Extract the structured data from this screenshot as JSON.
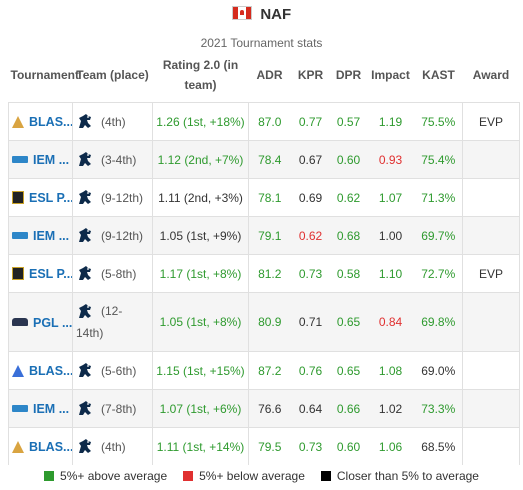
{
  "header": {
    "player_name": "NAF",
    "flag_icon": "canada-flag-icon"
  },
  "subtitle": "2021 Tournament stats",
  "columns": {
    "tournament": "Tournament",
    "team": "Team (place)",
    "rating": "Rating 2.0 (in team)",
    "adr": "ADR",
    "kpr": "KPR",
    "dpr": "DPR",
    "impact": "Impact",
    "kast": "KAST",
    "award": "Award"
  },
  "colors": {
    "good": "#2e9a2e",
    "bad": "#e03030",
    "neutral": "#000000"
  },
  "rows": [
    {
      "icon": "blast-gold-icon",
      "tournament": "BLAS...",
      "team_icon": "liquid-horse-icon",
      "place": "(4th)",
      "rating": "1.26 (1st, +18%)",
      "rating_class": "good",
      "adr": "87.0",
      "adr_class": "good",
      "kpr": "0.77",
      "kpr_class": "good",
      "dpr": "0.57",
      "dpr_class": "good",
      "impact": "1.19",
      "impact_class": "good",
      "kast": "75.5%",
      "kast_class": "good",
      "award": "EVP"
    },
    {
      "icon": "iem-icon",
      "tournament": "IEM ...",
      "team_icon": "liquid-horse-icon",
      "place": "(3-4th)",
      "rating": "1.12 (2nd, +7%)",
      "rating_class": "good",
      "adr": "78.4",
      "adr_class": "good",
      "kpr": "0.67",
      "kpr_class": "neutral",
      "dpr": "0.60",
      "dpr_class": "good",
      "impact": "0.93",
      "impact_class": "bad",
      "kast": "75.4%",
      "kast_class": "good",
      "award": ""
    },
    {
      "icon": "esl-pro-icon",
      "tournament": "ESL P...",
      "team_icon": "liquid-horse-icon",
      "place": "(9-12th)",
      "rating": "1.11 (2nd, +3%)",
      "rating_class": "neutral",
      "adr": "78.1",
      "adr_class": "good",
      "kpr": "0.69",
      "kpr_class": "neutral",
      "dpr": "0.62",
      "dpr_class": "good",
      "impact": "1.07",
      "impact_class": "good",
      "kast": "71.3%",
      "kast_class": "good",
      "award": ""
    },
    {
      "icon": "iem-icon",
      "tournament": "IEM ...",
      "team_icon": "liquid-horse-icon",
      "place": "(9-12th)",
      "rating": "1.05 (1st, +9%)",
      "rating_class": "neutral",
      "adr": "79.1",
      "adr_class": "good",
      "kpr": "0.62",
      "kpr_class": "bad",
      "dpr": "0.68",
      "dpr_class": "good",
      "impact": "1.00",
      "impact_class": "neutral",
      "kast": "69.7%",
      "kast_class": "good",
      "award": ""
    },
    {
      "icon": "esl-pro-icon",
      "tournament": "ESL P...",
      "team_icon": "liquid-horse-icon",
      "place": "(5-8th)",
      "rating": "1.17 (1st, +8%)",
      "rating_class": "good",
      "adr": "81.2",
      "adr_class": "good",
      "kpr": "0.73",
      "kpr_class": "good",
      "dpr": "0.58",
      "dpr_class": "good",
      "impact": "1.10",
      "impact_class": "good",
      "kast": "72.7%",
      "kast_class": "good",
      "award": "EVP"
    },
    {
      "icon": "pgl-icon",
      "tournament": "PGL ...",
      "team_icon": "liquid-horse-icon",
      "place": "(12-14th)",
      "rating": "1.05 (1st, +8%)",
      "rating_class": "good",
      "adr": "80.9",
      "adr_class": "good",
      "kpr": "0.71",
      "kpr_class": "neutral",
      "dpr": "0.65",
      "dpr_class": "good",
      "impact": "0.84",
      "impact_class": "bad",
      "kast": "69.8%",
      "kast_class": "good",
      "award": ""
    },
    {
      "icon": "blast-blue-icon",
      "tournament": "BLAS...",
      "team_icon": "liquid-horse-icon",
      "place": "(5-6th)",
      "rating": "1.15 (1st, +15%)",
      "rating_class": "good",
      "adr": "87.2",
      "adr_class": "good",
      "kpr": "0.76",
      "kpr_class": "good",
      "dpr": "0.65",
      "dpr_class": "good",
      "impact": "1.08",
      "impact_class": "good",
      "kast": "69.0%",
      "kast_class": "neutral",
      "award": ""
    },
    {
      "icon": "iem-icon",
      "tournament": "IEM ...",
      "team_icon": "liquid-horse-icon",
      "place": "(7-8th)",
      "rating": "1.07 (1st, +6%)",
      "rating_class": "good",
      "adr": "76.6",
      "adr_class": "neutral",
      "kpr": "0.64",
      "kpr_class": "neutral",
      "dpr": "0.66",
      "dpr_class": "good",
      "impact": "1.02",
      "impact_class": "neutral",
      "kast": "73.3%",
      "kast_class": "good",
      "award": ""
    },
    {
      "icon": "blast-gold-icon",
      "tournament": "BLAS...",
      "team_icon": "liquid-horse-icon",
      "place": "(4th)",
      "rating": "1.11 (1st, +14%)",
      "rating_class": "good",
      "adr": "79.5",
      "adr_class": "good",
      "kpr": "0.73",
      "kpr_class": "good",
      "dpr": "0.60",
      "dpr_class": "good",
      "impact": "1.06",
      "impact_class": "good",
      "kast": "68.5%",
      "kast_class": "neutral",
      "award": ""
    }
  ],
  "legend": [
    {
      "color": "#2e9a2e",
      "label": "5%+ above average"
    },
    {
      "color": "#e03030",
      "label": "5%+ below average"
    },
    {
      "color": "#000000",
      "label": "Closer than 5% to average"
    }
  ]
}
